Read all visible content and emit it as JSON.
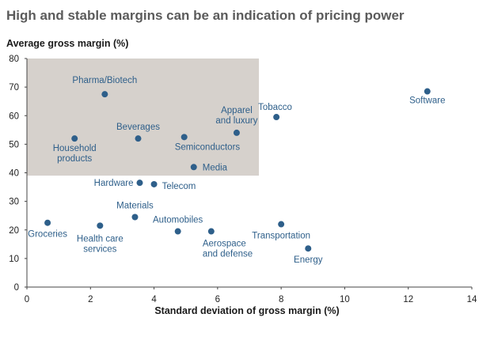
{
  "chart_data": {
    "type": "scatter",
    "title": "High and stable margins can be an indication of pricing power",
    "ylabel": "Average gross margin (%)",
    "xlabel": "Standard deviation of gross margin (%)",
    "xlim": [
      0,
      14
    ],
    "ylim": [
      0,
      80
    ],
    "xticks": [
      "0",
      "2",
      "4",
      "6",
      "8",
      "10",
      "12",
      "14"
    ],
    "yticks": [
      "0",
      "10",
      "20",
      "30",
      "40",
      "50",
      "60",
      "70",
      "80"
    ],
    "highlight_region": {
      "x": [
        0,
        7.3
      ],
      "y": [
        39,
        80
      ]
    },
    "colors": {
      "point": "#2e5f8a",
      "label": "#2e5f8a",
      "highlight": "#d6d1cc",
      "axis": "#444444"
    },
    "points": [
      {
        "label": "Pharma/Biotech",
        "x": 2.45,
        "y": 67.5
      },
      {
        "label": "Household products",
        "x": 1.5,
        "y": 52
      },
      {
        "label": "Beverages",
        "x": 3.5,
        "y": 52
      },
      {
        "label": "Semiconductors",
        "x": 4.95,
        "y": 52.5
      },
      {
        "label": "Apparel and luxury",
        "x": 6.6,
        "y": 54
      },
      {
        "label": "Media",
        "x": 5.25,
        "y": 42
      },
      {
        "label": "Tobacco",
        "x": 7.85,
        "y": 59.5
      },
      {
        "label": "Software",
        "x": 12.6,
        "y": 68.5
      },
      {
        "label": "Hardware",
        "x": 3.55,
        "y": 36.5
      },
      {
        "label": "Telecom",
        "x": 4.0,
        "y": 36
      },
      {
        "label": "Materials",
        "x": 3.4,
        "y": 24.5
      },
      {
        "label": "Groceries",
        "x": 0.65,
        "y": 22.5
      },
      {
        "label": "Health care services",
        "x": 2.3,
        "y": 21.5
      },
      {
        "label": "Automobiles",
        "x": 4.75,
        "y": 19.5
      },
      {
        "label": "Aerospace and defense",
        "x": 5.8,
        "y": 19.5
      },
      {
        "label": "Transportation",
        "x": 8.0,
        "y": 22
      },
      {
        "label": "Energy",
        "x": 8.85,
        "y": 13.5
      }
    ]
  }
}
